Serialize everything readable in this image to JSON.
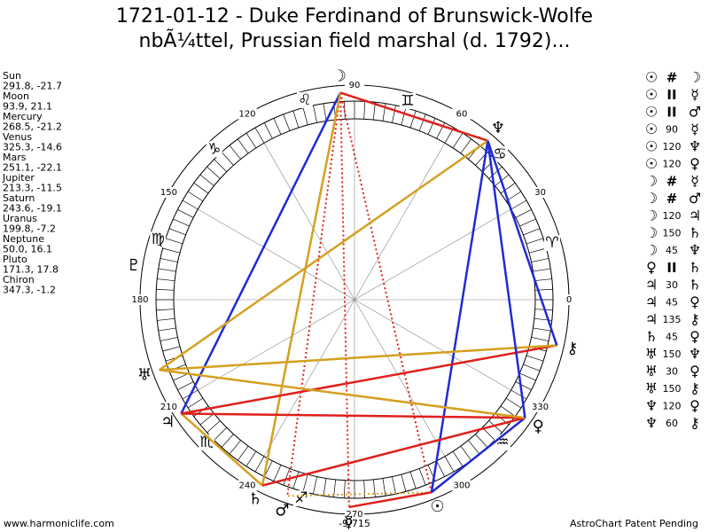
{
  "header": {
    "title_line1": "1721-01-12 - Duke Ferdinand of Brunswick-Wolfe",
    "title_line2": "nbÃ¼ttel, Prussian field marshal (d. 1792)..."
  },
  "planets": [
    {
      "name": "Sun",
      "glyph": "☉",
      "coords": "291.8, -21.7"
    },
    {
      "name": "Moon",
      "glyph": "☽",
      "coords": "93.9, 21.1"
    },
    {
      "name": "Mercury",
      "glyph": "☿",
      "coords": "268.5, -21.2"
    },
    {
      "name": "Venus",
      "glyph": "♀",
      "coords": "325.3, -14.6"
    },
    {
      "name": "Mars",
      "glyph": "♂",
      "coords": "251.1, -22.1"
    },
    {
      "name": "Jupiter",
      "glyph": "♃",
      "coords": "213.3, -11.5"
    },
    {
      "name": "Saturn",
      "glyph": "♄",
      "coords": "243.6, -19.1"
    },
    {
      "name": "Uranus",
      "glyph": "♅",
      "coords": "199.8, -7.2"
    },
    {
      "name": "Neptune",
      "glyph": "♆",
      "coords": "50.0, 16.1"
    },
    {
      "name": "Pluto",
      "glyph": "♇",
      "coords": "171.3, 17.8"
    },
    {
      "name": "Chiron",
      "glyph": "⚷",
      "coords": "347.3, -1.2"
    }
  ],
  "aspects": [
    [
      "☉",
      "#",
      "☽"
    ],
    [
      "☉",
      "II",
      "☿"
    ],
    [
      "☉",
      "II",
      "♂"
    ],
    [
      "☉",
      "90",
      "☿"
    ],
    [
      "☉",
      "120",
      "♆"
    ],
    [
      "☉",
      "120",
      "♀"
    ],
    [
      "☽",
      "#",
      "☿"
    ],
    [
      "☽",
      "#",
      "♂"
    ],
    [
      "☽",
      "120",
      "♃"
    ],
    [
      "☽",
      "150",
      "♄"
    ],
    [
      "☽",
      "45",
      "♆"
    ],
    [
      "♀",
      "II",
      "♄"
    ],
    [
      "♃",
      "30",
      "♄"
    ],
    [
      "♃",
      "45",
      "♀"
    ],
    [
      "♃",
      "135",
      "⚷"
    ],
    [
      "♄",
      "45",
      "♀"
    ],
    [
      "♅",
      "150",
      "♆"
    ],
    [
      "♅",
      "30",
      "♀"
    ],
    [
      "♅",
      "150",
      "⚷"
    ],
    [
      "♆",
      "120",
      "♀"
    ],
    [
      "♆",
      "60",
      "⚷"
    ]
  ],
  "degree_labels": [
    0,
    30,
    60,
    90,
    120,
    150,
    180,
    210,
    240,
    270,
    300,
    330
  ],
  "signs": [
    "♈",
    "♋",
    "♊",
    "♌",
    "♑",
    "♍",
    "♏",
    "♐",
    "♒"
  ],
  "bottom_note": "-9/715",
  "footer": {
    "left": "www.harmoniclife.com",
    "right": "AstroChart Patent Pending"
  }
}
